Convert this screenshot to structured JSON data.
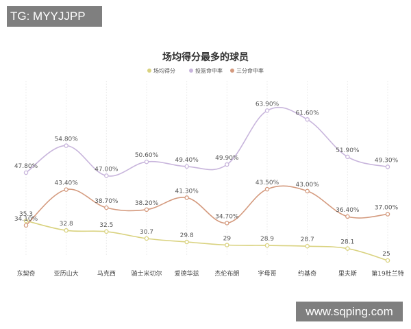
{
  "watermark_top": "TG: MYYJJPP",
  "watermark_bottom": "www.sqping.com",
  "chart_data": {
    "type": "line",
    "title": "场均得分最多的球员",
    "categories": [
      "东契奇",
      "亚历山大",
      "马克西",
      "骑士米切尔",
      "爱德华兹",
      "杰伦布朗",
      "字母哥",
      "约基奇",
      "里夫斯",
      "第19杜兰特"
    ],
    "legend_position": "top-center",
    "grid": true,
    "series": [
      {
        "name": "场均得分",
        "color": "#d9d27f",
        "values": [
          35.3,
          32.8,
          32.5,
          30.7,
          29.8,
          29,
          28.9,
          28.7,
          28.1,
          25
        ],
        "labels": [
          "35.3",
          "32.8",
          "32.5",
          "30.7",
          "29.8",
          "29",
          "28.9",
          "28.7",
          "28.1",
          "25"
        ]
      },
      {
        "name": "投篮命中率",
        "color": "#c8b5dc",
        "values": [
          47.8,
          54.8,
          47.0,
          50.6,
          49.4,
          49.9,
          63.9,
          61.6,
          51.9,
          49.3
        ],
        "labels": [
          "47.80%",
          "54.80%",
          "47.00%",
          "50.60%",
          "49.40%",
          "49.90%",
          "63.90%",
          "61.60%",
          "51.90%",
          "49.30%"
        ]
      },
      {
        "name": "三分命中率",
        "color": "#d49a7e",
        "values": [
          34.1,
          43.4,
          38.7,
          38.2,
          41.3,
          34.7,
          43.5,
          43.0,
          36.4,
          37.0
        ],
        "labels": [
          "34.10%",
          "43.40%",
          "38.70%",
          "38.20%",
          "41.30%",
          "34.70%",
          "43.50%",
          "43.00%",
          "36.40%",
          "37.00%"
        ]
      }
    ]
  }
}
